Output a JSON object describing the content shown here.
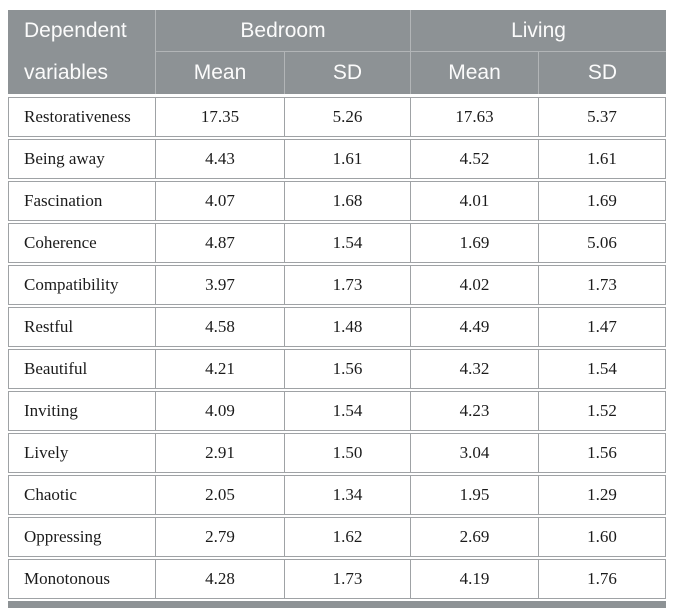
{
  "table": {
    "header": {
      "col1_line1": "Dependent",
      "col1_line2": "variables",
      "group1": "Bedroom",
      "group2": "Living",
      "sub": [
        "Mean",
        "SD",
        "Mean",
        "SD"
      ]
    },
    "rows": [
      {
        "label": "Restorativeness",
        "values": [
          "17.35",
          "5.26",
          "17.63",
          "5.37"
        ]
      },
      {
        "label": "Being away",
        "values": [
          "4.43",
          "1.61",
          "4.52",
          "1.61"
        ]
      },
      {
        "label": "Fascination",
        "values": [
          "4.07",
          "1.68",
          "4.01",
          "1.69"
        ]
      },
      {
        "label": "Coherence",
        "values": [
          "4.87",
          "1.54",
          "1.69",
          "5.06"
        ]
      },
      {
        "label": "Compatibility",
        "values": [
          "3.97",
          "1.73",
          "4.02",
          "1.73"
        ]
      },
      {
        "label": "Restful",
        "values": [
          "4.58",
          "1.48",
          "4.49",
          "1.47"
        ]
      },
      {
        "label": "Beautiful",
        "values": [
          "4.21",
          "1.56",
          "4.32",
          "1.54"
        ]
      },
      {
        "label": "Inviting",
        "values": [
          "4.09",
          "1.54",
          "4.23",
          "1.52"
        ]
      },
      {
        "label": "Lively",
        "values": [
          "2.91",
          "1.50",
          "3.04",
          "1.56"
        ]
      },
      {
        "label": "Chaotic",
        "values": [
          "2.05",
          "1.34",
          "1.95",
          "1.29"
        ]
      },
      {
        "label": "Oppressing",
        "values": [
          "2.79",
          "1.62",
          "2.69",
          "1.60"
        ]
      },
      {
        "label": "Monotonous",
        "values": [
          "4.28",
          "1.73",
          "4.19",
          "1.76"
        ]
      }
    ],
    "colors": {
      "header_bg": "#8d9295",
      "header_text": "#fbfbfb",
      "header_divider": "#b2b5b7",
      "row_border": "#9fa2a5",
      "body_text": "#1b1b1b",
      "footer_bar": "#8d9295"
    }
  }
}
